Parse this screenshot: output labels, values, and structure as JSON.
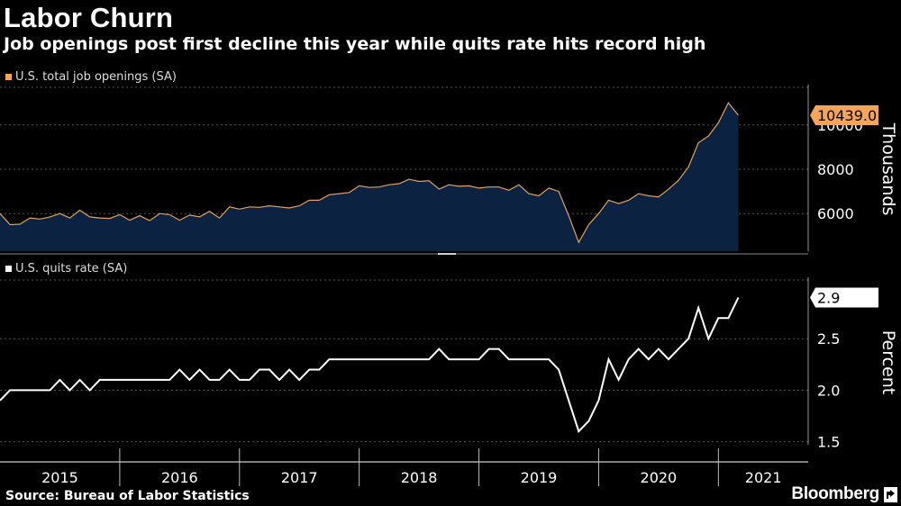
{
  "header": {
    "title": "Labor Churn",
    "subtitle": "Job openings post first decline this year while quits rate hits record high"
  },
  "footer": {
    "source": "Source: Bureau of Labor Statistics",
    "brand": "Bloomberg"
  },
  "colors": {
    "background": "#000000",
    "openings_line": "#e2a15f",
    "openings_fill": "#0b2240",
    "quits_line": "#ffffff",
    "grid": "#555555",
    "openings_badge": "#f5a55a"
  },
  "chart_data": [
    {
      "type": "area",
      "legend": "U.S. total job openings (SA)",
      "ylabel": "Thousands",
      "yticks": [
        6000,
        8000,
        10000
      ],
      "ylim": [
        4300,
        11700
      ],
      "xlim": [
        2015.0,
        2021.75
      ],
      "start": 2015.0,
      "step_months": 1,
      "last_value_label": "10439.0",
      "values": [
        6000,
        5500,
        5520,
        5800,
        5750,
        5850,
        6000,
        5800,
        6150,
        5850,
        5800,
        5780,
        5950,
        5700,
        5900,
        5680,
        6000,
        5950,
        5700,
        5930,
        5850,
        6100,
        5800,
        6300,
        6200,
        6300,
        6280,
        6350,
        6300,
        6250,
        6350,
        6600,
        6600,
        6850,
        6900,
        6950,
        7250,
        7180,
        7200,
        7300,
        7350,
        7550,
        7450,
        7480,
        7100,
        7300,
        7230,
        7250,
        7150,
        7200,
        7200,
        7050,
        7300,
        6900,
        6800,
        7150,
        7000,
        5900,
        4700,
        5500,
        6000,
        6600,
        6450,
        6600,
        6900,
        6800,
        6750,
        7100,
        7500,
        8100,
        9200,
        9500,
        10100,
        11000,
        10439
      ]
    },
    {
      "type": "line",
      "legend": "U.S. quits rate (SA)",
      "ylabel": "Percent",
      "yticks": [
        "1.5",
        "2.0",
        "2.5"
      ],
      "ylim": [
        1.47,
        3.07
      ],
      "xlim": [
        2015.0,
        2021.75
      ],
      "start": 2015.0,
      "step_months": 1,
      "last_value_label": "2.9",
      "values": [
        1.9,
        2.0,
        2.0,
        2.0,
        2.0,
        2.0,
        2.1,
        2.0,
        2.1,
        2.0,
        2.1,
        2.1,
        2.1,
        2.1,
        2.1,
        2.1,
        2.1,
        2.1,
        2.2,
        2.1,
        2.2,
        2.1,
        2.1,
        2.2,
        2.1,
        2.1,
        2.2,
        2.2,
        2.1,
        2.2,
        2.1,
        2.2,
        2.2,
        2.3,
        2.3,
        2.3,
        2.3,
        2.3,
        2.3,
        2.3,
        2.3,
        2.3,
        2.3,
        2.3,
        2.4,
        2.3,
        2.3,
        2.3,
        2.3,
        2.4,
        2.4,
        2.3,
        2.3,
        2.3,
        2.3,
        2.3,
        2.2,
        1.9,
        1.6,
        1.7,
        1.9,
        2.3,
        2.1,
        2.3,
        2.4,
        2.3,
        2.4,
        2.3,
        2.4,
        2.5,
        2.8,
        2.5,
        2.7,
        2.7,
        2.9
      ]
    }
  ],
  "x_axis": {
    "years": [
      "2015",
      "2016",
      "2017",
      "2018",
      "2019",
      "2020",
      "2021"
    ]
  }
}
